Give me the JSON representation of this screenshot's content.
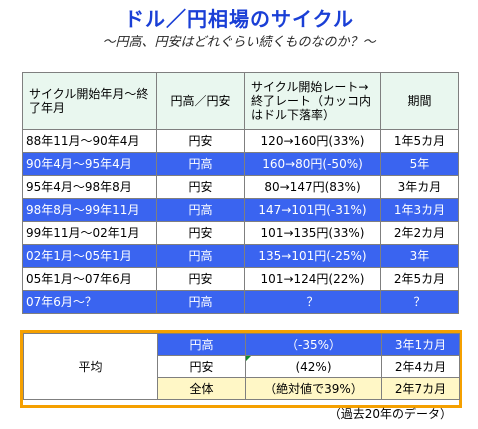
{
  "title": "ドル／円相場のサイクル",
  "subtitle": "～円高、円安はどれぐらい続くものなのか？～",
  "table": {
    "headers": {
      "period": "サイクル開始年月～終了年月",
      "trend": "円高／円安",
      "rate": "サイクル開始レート→終了レート（カッコ内はドル下落率）",
      "duration": "期間"
    },
    "rows": [
      {
        "period": "88年11月～90年4月",
        "trend": "円安",
        "rate": "120→160円(33%)",
        "duration": "1年5カ月",
        "kind": "cheap"
      },
      {
        "period": "90年4月～95年4月",
        "trend": "円高",
        "rate": "160→80円(-50%)",
        "duration": "5年",
        "kind": "strong"
      },
      {
        "period": "95年4月～98年8月",
        "trend": "円安",
        "rate": "80→147円(83%)",
        "duration": "3年カ月",
        "kind": "cheap"
      },
      {
        "period": "98年8月～99年11月",
        "trend": "円高",
        "rate": "147→101円(-31%)",
        "duration": "1年3カ月",
        "kind": "strong"
      },
      {
        "period": "99年11月～02年1月",
        "trend": "円安",
        "rate": "101→135円(33%)",
        "duration": "2年2カ月",
        "kind": "cheap"
      },
      {
        "period": "02年1月～05年1月",
        "trend": "円高",
        "rate": "135→101円(-25%)",
        "duration": "3年",
        "kind": "strong"
      },
      {
        "period": "05年1月～07年6月",
        "trend": "円安",
        "rate": "101→124円(22%)",
        "duration": "2年5カ月",
        "kind": "cheap"
      },
      {
        "period": "07年6月～？",
        "trend": "円高",
        "rate": "？",
        "duration": "？",
        "kind": "strong"
      }
    ]
  },
  "average": {
    "label": "平均",
    "rows": [
      {
        "trend": "円高",
        "rate": "（-35%）",
        "duration": "3年1カ月",
        "kind": "strong"
      },
      {
        "trend": "円安",
        "rate": "(42%)",
        "duration": "2年4カ月",
        "kind": "cheap"
      },
      {
        "trend": "全体",
        "rate": "（絶対値で39%）",
        "duration": "2年7カ月",
        "kind": "total"
      }
    ]
  },
  "source_note": "（過去20年のデータ）"
}
